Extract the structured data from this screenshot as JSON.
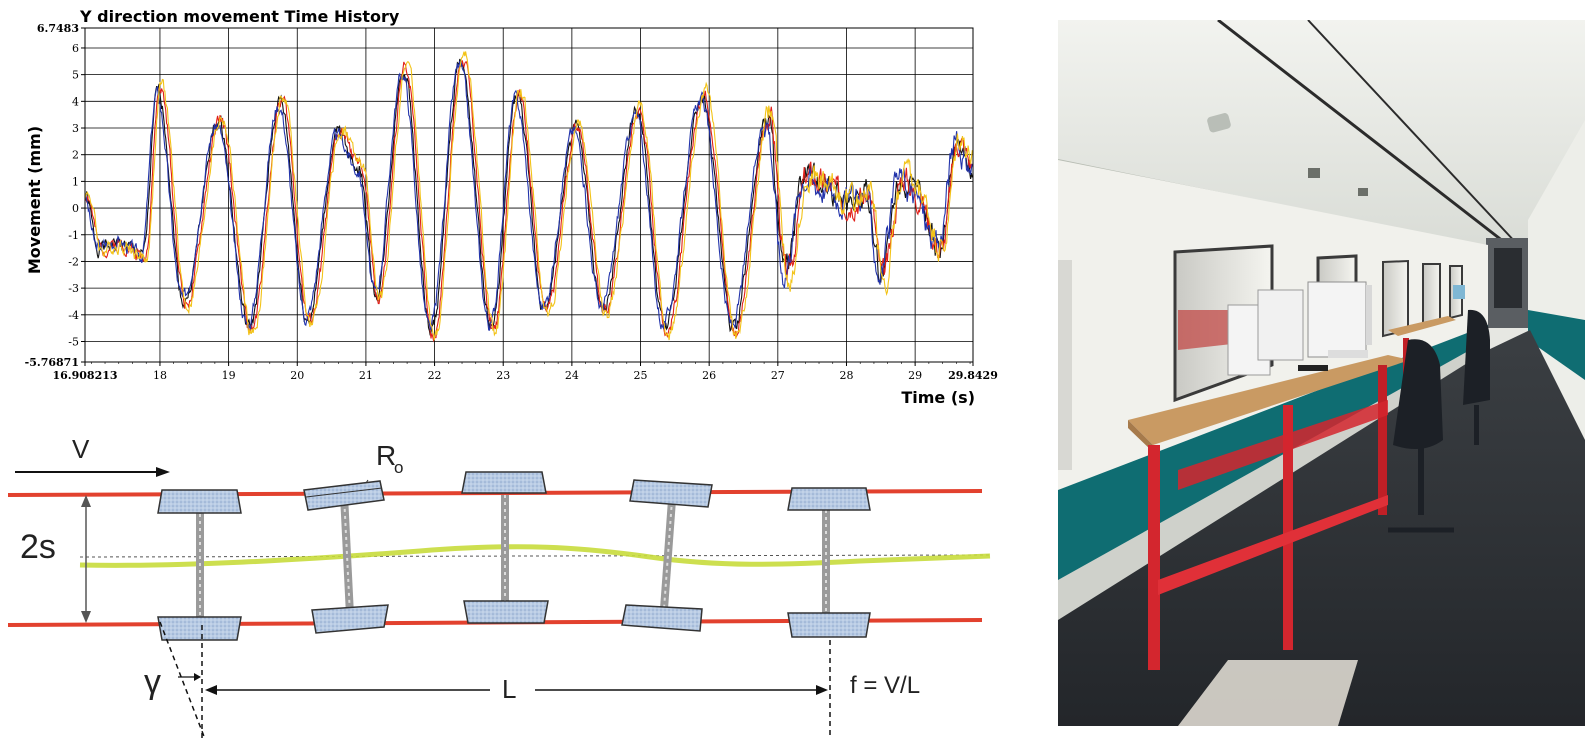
{
  "chart_data": {
    "type": "line",
    "title": "Y direction movement Time History",
    "xlabel": "Time (s)",
    "ylabel": "Movement (mm)",
    "xlim": [
      16.908213,
      29.8429
    ],
    "ylim": [
      -5.76871,
      6.7483
    ],
    "x_tick_labels": [
      "16.908213",
      "18",
      "19",
      "20",
      "21",
      "22",
      "23",
      "24",
      "25",
      "26",
      "27",
      "28",
      "29",
      "29.8429"
    ],
    "x_ticks": [
      16.908213,
      18,
      19,
      20,
      21,
      22,
      23,
      24,
      25,
      26,
      27,
      28,
      29,
      29.8429
    ],
    "y_tick_labels": [
      "6.7483",
      "6",
      "5",
      "4",
      "3",
      "2",
      "1",
      "0",
      "-1",
      "-2",
      "-3",
      "-4",
      "-5",
      "-5.76871"
    ],
    "y_ticks": [
      6.7483,
      6,
      5,
      4,
      3,
      2,
      1,
      0,
      -1,
      -2,
      -3,
      -4,
      -5,
      -5.76871
    ],
    "grid": true,
    "colors": {
      "black": "#111111",
      "red": "#e0201a",
      "blue": "#2233aa",
      "yellow": "#f2c318"
    },
    "keypoints": {
      "t": [
        16.91,
        17.1,
        17.4,
        17.75,
        17.97,
        18.35,
        18.85,
        19.3,
        19.75,
        20.15,
        20.6,
        20.9,
        21.15,
        21.55,
        21.95,
        22.38,
        22.83,
        23.2,
        23.6,
        24.05,
        24.45,
        24.95,
        25.35,
        25.9,
        26.35,
        26.85,
        27.1,
        27.4,
        27.7,
        28.0,
        28.3,
        28.5,
        28.8,
        29.0,
        29.35,
        29.6,
        29.84
      ],
      "y": [
        0.5,
        -1.5,
        -1.3,
        -1.8,
        4.4,
        -3.5,
        3.2,
        -4.5,
        4.0,
        -4.2,
        2.8,
        1.5,
        -3.3,
        5.2,
        -4.7,
        5.5,
        -4.5,
        4.2,
        -3.8,
        3.0,
        -3.8,
        3.6,
        -4.5,
        4.2,
        -4.5,
        3.5,
        -2.5,
        1.2,
        0.8,
        0.3,
        0.5,
        -2.5,
        1.2,
        0.5,
        -1.5,
        2.5,
        1.5
      ]
    },
    "series": [
      {
        "color_key": "black",
        "seed": 1,
        "shift": 0.0,
        "scale": 1.0
      },
      {
        "color_key": "red",
        "seed": 2,
        "shift": -0.03,
        "scale": 1.02
      },
      {
        "color_key": "blue",
        "seed": 3,
        "shift": 0.02,
        "scale": 0.97
      },
      {
        "color_key": "yellow",
        "seed": 4,
        "shift": -0.05,
        "scale": 1.05
      }
    ]
  },
  "diagram": {
    "label_v": "V",
    "label_ro_main": "R",
    "label_ro_sub": "o",
    "label_2s": "2s",
    "label_gamma": "γ",
    "label_l": "L",
    "label_f": "f = V/L",
    "colors": {
      "rail": "#e2412e",
      "wave": "#c8dc3c",
      "wheel_fill": "#b8cbe4",
      "wheel_stroke": "#333333",
      "axle": "#9a9a9a"
    }
  },
  "photo": {
    "colors": {
      "ceiling": "#e9ebe6",
      "wall": "#f1f1ec",
      "floor": "#2c2f33",
      "desk_top": "#c99a63",
      "desk_frame": "#d3262e",
      "stripe": "#0f6d72",
      "window": "#dfe2df"
    }
  }
}
